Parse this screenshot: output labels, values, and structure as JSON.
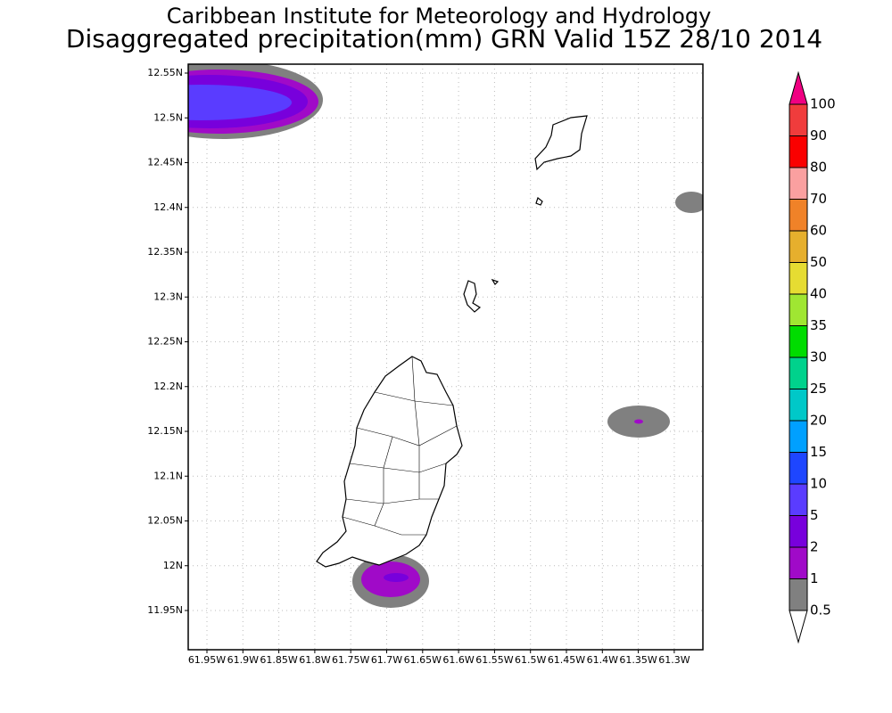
{
  "header": {
    "title": "Caribbean Institute for Meteorology and Hydrology",
    "subtitle": "Disaggregated precipitation(mm) GRN Valid 15Z 28/10 2014"
  },
  "map": {
    "lat_ticks": [
      "12.55N",
      "12.5N",
      "12.45N",
      "12.4N",
      "12.35N",
      "12.3N",
      "12.25N",
      "12.2N",
      "12.15N",
      "12.1N",
      "12.05N",
      "12N",
      "11.95N"
    ],
    "lon_ticks": [
      "61.95W",
      "61.9W",
      "61.85W",
      "61.8W",
      "61.75W",
      "61.7W",
      "61.65W",
      "61.6W",
      "61.55W",
      "61.5W",
      "61.45W",
      "61.4W",
      "61.35W",
      "61.3W"
    ]
  },
  "colorbar": {
    "labels": [
      "0.5",
      "1",
      "2",
      "5",
      "10",
      "15",
      "20",
      "25",
      "30",
      "35",
      "40",
      "50",
      "60",
      "70",
      "80",
      "90",
      "100"
    ],
    "colors": [
      "#ffffff",
      "#808080",
      "#a00ac8",
      "#7800dc",
      "#5a3cff",
      "#1e46ff",
      "#00a0ff",
      "#00c8c8",
      "#00d28c",
      "#00dc00",
      "#a0e632",
      "#e6dc32",
      "#e6af2d",
      "#f08228",
      "#faa0a0",
      "#fa0000",
      "#f03c3c",
      "#f00082"
    ]
  }
}
